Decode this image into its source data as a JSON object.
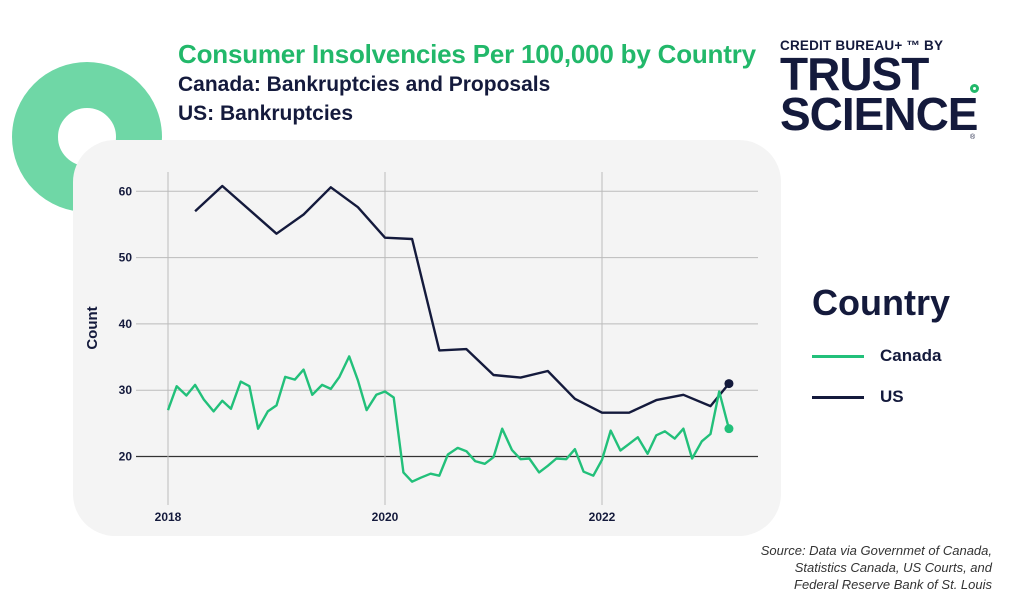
{
  "header": {
    "title": "Consumer Insolvencies Per 100,000 by Country",
    "subtitle_line1": "Canada: Bankruptcies and Proposals",
    "subtitle_line2": "US: Bankruptcies"
  },
  "brand": {
    "top": "CREDIT BUREAU+ ™ BY",
    "word1": "TRUST",
    "word2": "SCIENCE",
    "reg": "®"
  },
  "legend": {
    "title": "Country",
    "items": [
      {
        "label": "Canada",
        "color": "#22c07a"
      },
      {
        "label": "US",
        "color": "#141a3c"
      }
    ]
  },
  "source": {
    "line1": "Source: Data via Governmet of Canada,",
    "line2": "Statistics Canada, US Courts, and",
    "line3": "Federal Reserve Bank of St. Louis"
  },
  "chart_data": {
    "type": "line",
    "title": "Consumer Insolvencies Per 100,000 by Country",
    "xlabel": "",
    "ylabel": "Count",
    "xlim": [
      2018,
      2023.4
    ],
    "ylim": [
      15,
      63
    ],
    "xticks": [
      2018,
      2020,
      2022
    ],
    "yticks": [
      20,
      30,
      40,
      50,
      60
    ],
    "grid": true,
    "legend_position": "right",
    "series": [
      {
        "name": "US",
        "color": "#141a3c",
        "end_marker": true,
        "x": [
          2018.25,
          2018.5,
          2019.0,
          2019.25,
          2019.5,
          2019.75,
          2020.0,
          2020.25,
          2020.5,
          2020.75,
          2021.0,
          2021.25,
          2021.5,
          2021.75,
          2022.0,
          2022.25,
          2022.5,
          2022.75,
          2023.0,
          2023.17
        ],
        "values": [
          57.0,
          60.8,
          53.6,
          56.5,
          60.6,
          57.6,
          53.0,
          52.8,
          36.0,
          36.2,
          32.3,
          31.9,
          32.9,
          28.7,
          26.6,
          26.6,
          28.5,
          29.3,
          27.6,
          31.0
        ]
      },
      {
        "name": "Canada",
        "color": "#22c07a",
        "end_marker": true,
        "x": [
          2018.0,
          2018.08,
          2018.17,
          2018.25,
          2018.33,
          2018.42,
          2018.5,
          2018.58,
          2018.67,
          2018.75,
          2018.83,
          2018.92,
          2019.0,
          2019.08,
          2019.17,
          2019.25,
          2019.33,
          2019.42,
          2019.5,
          2019.58,
          2019.67,
          2019.75,
          2019.83,
          2019.92,
          2020.0,
          2020.08,
          2020.17,
          2020.25,
          2020.33,
          2020.42,
          2020.5,
          2020.58,
          2020.67,
          2020.75,
          2020.83,
          2020.92,
          2021.0,
          2021.08,
          2021.17,
          2021.25,
          2021.33,
          2021.42,
          2021.5,
          2021.58,
          2021.67,
          2021.75,
          2021.83,
          2021.92,
          2022.0,
          2022.08,
          2022.17,
          2022.25,
          2022.33,
          2022.42,
          2022.5,
          2022.58,
          2022.67,
          2022.75,
          2022.83,
          2022.92,
          2023.0,
          2023.08,
          2023.17
        ],
        "values": [
          27.0,
          30.6,
          29.2,
          30.8,
          28.6,
          26.8,
          28.4,
          27.2,
          31.3,
          30.6,
          24.2,
          26.8,
          27.7,
          32.0,
          31.6,
          33.1,
          29.3,
          30.8,
          30.2,
          32.0,
          35.1,
          31.5,
          27.0,
          29.3,
          29.8,
          28.9,
          17.6,
          16.2,
          16.8,
          17.4,
          17.1,
          20.3,
          21.3,
          20.8,
          19.3,
          18.9,
          19.9,
          24.2,
          21.0,
          19.6,
          19.7,
          17.6,
          18.6,
          19.7,
          19.6,
          21.1,
          17.7,
          17.1,
          19.5,
          23.9,
          20.9,
          21.9,
          22.9,
          20.4,
          23.2,
          23.8,
          22.7,
          24.2,
          19.7,
          22.3,
          23.4,
          29.8,
          24.2
        ]
      }
    ]
  }
}
